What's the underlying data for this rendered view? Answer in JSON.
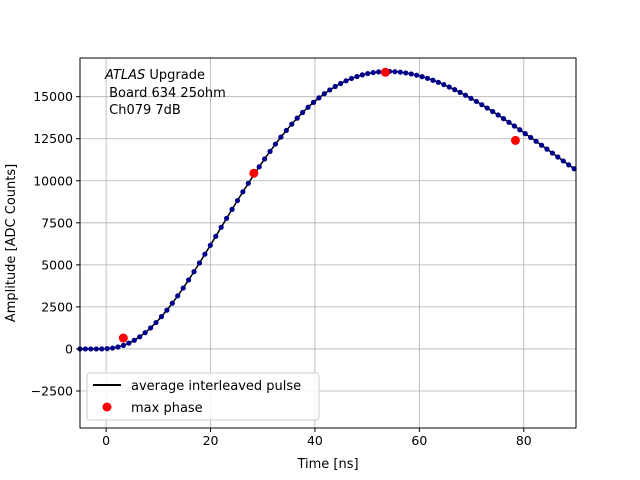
{
  "chart_data": {
    "type": "scatter",
    "annotation": {
      "line1_italic": "ATLAS",
      "line1_rest": " Upgrade",
      "line2": " Board 634 25ohm",
      "line3": " Ch079 7dB"
    },
    "xlabel": "Time [ns]",
    "ylabel": "Amplitude [ADC Counts]",
    "xlim": [
      -5,
      90
    ],
    "ylim": [
      -4700,
      17300
    ],
    "x_ticks": [
      0,
      20,
      40,
      60,
      80
    ],
    "y_ticks": [
      -2500,
      0,
      2500,
      5000,
      7500,
      10000,
      12500,
      15000
    ],
    "grid": true,
    "legend_position": "lower-left",
    "legend": {
      "line_label": "average interleaved pulse",
      "point_label": "max phase"
    },
    "pulse": {
      "x_start": -5,
      "x_end": 90,
      "dx": 1.04,
      "peak_x": 54,
      "peak_y": 16500,
      "marker_color": "#00008b",
      "line_color": "#000000"
    },
    "max_phase_points": {
      "x": [
        3.3,
        28.3,
        53.5,
        78.4
      ],
      "y": [
        650,
        10450,
        16450,
        12400
      ],
      "color": "#ff0000"
    }
  }
}
